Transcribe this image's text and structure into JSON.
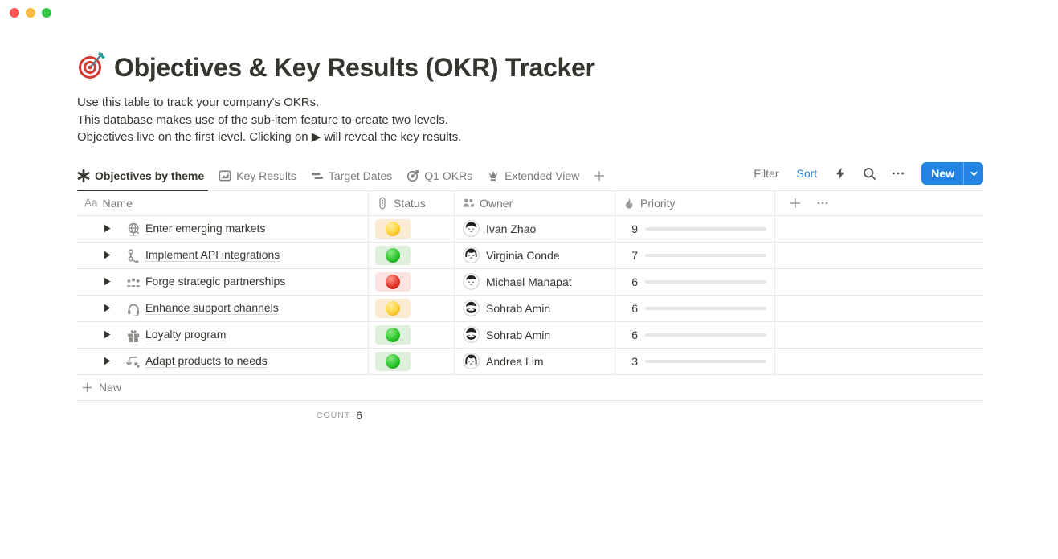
{
  "window": {
    "traffic_lights": [
      "close",
      "minimize",
      "zoom"
    ]
  },
  "page": {
    "icon": "dart-target-emoji",
    "title": "Objectives & Key Results (OKR) Tracker",
    "description_lines": [
      "Use this table to track your company's OKRs.",
      "This database makes use of the sub-item feature to create two levels.",
      "Objectives live on the first level. Clicking on ▶ will reveal the key results."
    ]
  },
  "views": {
    "tabs": [
      {
        "label": "Objectives by theme",
        "icon": "asterisk-icon",
        "active": true
      },
      {
        "label": "Key Results",
        "icon": "chart-icon",
        "active": false
      },
      {
        "label": "Target Dates",
        "icon": "timeline-icon",
        "active": false
      },
      {
        "label": "Q1 OKRs",
        "icon": "target-icon",
        "active": false
      },
      {
        "label": "Extended View",
        "icon": "crown-icon",
        "active": false
      }
    ],
    "add_view_icon": "plus-icon"
  },
  "toolbar": {
    "filter_label": "Filter",
    "sort_label": "Sort",
    "icons": [
      "lightning-icon",
      "search-icon",
      "ellipsis-icon"
    ],
    "new_button": {
      "label": "New",
      "chevron": "chevron-down-icon",
      "color": "#2383E2"
    }
  },
  "table": {
    "columns": [
      {
        "key": "name",
        "label": "Name",
        "icon": "text-aa-icon"
      },
      {
        "key": "status",
        "label": "Status",
        "icon": "traffic-light-icon"
      },
      {
        "key": "owner",
        "label": "Owner",
        "icon": "people-icon"
      },
      {
        "key": "priority",
        "label": "Priority",
        "icon": "flame-icon"
      }
    ],
    "add_column_icon": "plus-icon",
    "column_options_icon": "ellipsis-icon",
    "priority_max": 10,
    "priority_bar_color": "#6B9B7D",
    "status_colors": {
      "yellow": "#FBEBD3",
      "green": "#DEEFDC",
      "red": "#FBE3E2"
    },
    "rows": [
      {
        "name": "Enter emerging markets",
        "icon": "globe-icon",
        "status": "yellow",
        "owner": "Ivan Zhao",
        "avatar": "ivan",
        "priority": 9
      },
      {
        "name": "Implement API integrations",
        "icon": "nodes-icon",
        "status": "green",
        "owner": "Virginia Conde",
        "avatar": "virginia",
        "priority": 7
      },
      {
        "name": "Forge strategic partnerships",
        "icon": "people-group-icon",
        "status": "red",
        "owner": "Michael Manapat",
        "avatar": "michael",
        "priority": 6
      },
      {
        "name": "Enhance support channels",
        "icon": "headset-icon",
        "status": "yellow",
        "owner": "Sohrab Amin",
        "avatar": "sohrab",
        "priority": 6
      },
      {
        "name": "Loyalty program",
        "icon": "gift-icon",
        "status": "green",
        "owner": "Sohrab Amin",
        "avatar": "sohrab",
        "priority": 6
      },
      {
        "name": "Adapt products to needs",
        "icon": "sync-icon",
        "status": "green",
        "owner": "Andrea Lim",
        "avatar": "andrea",
        "priority": 3
      }
    ],
    "new_row_label": "New",
    "footer": {
      "count_label": "COUNT",
      "count_value": "6"
    }
  }
}
